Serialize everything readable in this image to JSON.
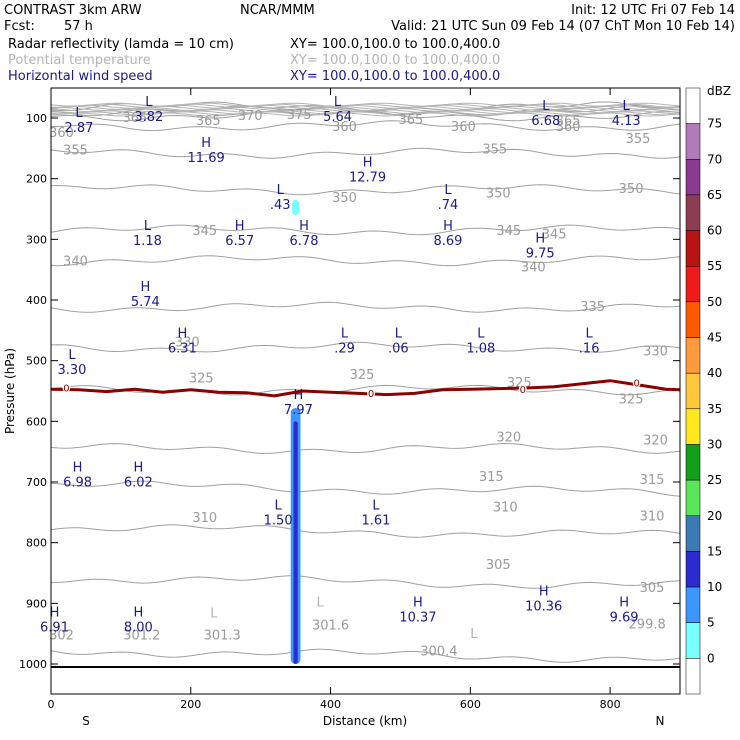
{
  "header": {
    "title": "CONTRAST  3km ARW",
    "center": "NCAR/MMM",
    "init": "Init: 12 UTC Fri 07 Feb 14",
    "fcst_label": "Fcst:",
    "fcst_value": "57 h",
    "valid": "Valid: 21 UTC Sun 09 Feb 14 (07 ChT Mon 10 Feb 14)",
    "fields": [
      {
        "name": "Radar reflectivity (lamda = 10 cm)",
        "xy": "XY= 100.0,100.0 to 100.0,400.0",
        "color": "#000000"
      },
      {
        "name": "Potential temperature",
        "xy": "XY= 100.0,100.0 to 100.0,400.0",
        "color": "#b4b4b4"
      },
      {
        "name": "Horizontal wind speed",
        "xy": "XY= 100.0,100.0 to 100.0,400.0",
        "color": "#1a1a8c"
      }
    ]
  },
  "chart_data": {
    "type": "cross-section",
    "xlabel": "Distance (km)",
    "ylabel": "Pressure (hPa)",
    "xlim": [
      0,
      900
    ],
    "ylim": [
      1050,
      60
    ],
    "x_ticks": [
      0,
      200,
      400,
      600,
      800
    ],
    "y_ticks": [
      100,
      200,
      300,
      400,
      500,
      600,
      700,
      800,
      900,
      1000
    ],
    "end_labels": {
      "left": "S",
      "right": "N"
    },
    "colorbar": {
      "unit": "dBZ",
      "levels": [
        "75",
        "70",
        "65",
        "60",
        "55",
        "50",
        "45",
        "40",
        "35",
        "30",
        "25",
        "20",
        "15",
        "10",
        "5",
        "0"
      ],
      "colors": [
        "#ffffff",
        "#b37ab9",
        "#8a3a91",
        "#8c3c53",
        "#b81414",
        "#ef1a1a",
        "#ff5a00",
        "#ff9b3c",
        "#ffc83c",
        "#ffe81e",
        "#12a01a",
        "#5ae65a",
        "#3c7ab4",
        "#2b2bd0",
        "#3c96ff",
        "#78ffff",
        "#ffffff"
      ]
    },
    "theta_lines": {
      "color": "#a0a0a0",
      "levels": [
        {
          "value": "300.4",
          "pressure": 978
        },
        {
          "value": "305",
          "pressure": 858
        },
        {
          "value": "310",
          "pressure": 775
        },
        {
          "value": "315",
          "pressure": 705
        },
        {
          "value": "320",
          "pressure": 645
        },
        {
          "value": "325",
          "pressure": 548
        },
        {
          "value": "330",
          "pressure": 478
        },
        {
          "value": "335",
          "pressure": 412
        },
        {
          "value": "340",
          "pressure": 335
        },
        {
          "value": "345",
          "pressure": 285
        },
        {
          "value": "350",
          "pressure": 218
        },
        {
          "value": "355",
          "pressure": 158
        },
        {
          "value": "360",
          "pressure": 113
        },
        {
          "value": "365",
          "pressure": 96
        },
        {
          "value": "370",
          "pressure": 88
        },
        {
          "value": "375",
          "pressure": 82
        }
      ],
      "labels": [
        {
          "text": "365",
          "x": 120,
          "p": 98
        },
        {
          "text": "365",
          "x": 225,
          "p": 103
        },
        {
          "text": "370",
          "x": 285,
          "p": 95
        },
        {
          "text": "375",
          "x": 355,
          "p": 93
        },
        {
          "text": "365",
          "x": 515,
          "p": 102
        },
        {
          "text": "365",
          "x": 740,
          "p": 103
        },
        {
          "text": "360",
          "x": 420,
          "p": 113
        },
        {
          "text": "360",
          "x": 590,
          "p": 113
        },
        {
          "text": "360",
          "x": 740,
          "p": 113
        },
        {
          "text": "360",
          "x": 15,
          "p": 123
        },
        {
          "text": "355",
          "x": 35,
          "p": 152
        },
        {
          "text": "355",
          "x": 635,
          "p": 150
        },
        {
          "text": "355",
          "x": 840,
          "p": 133
        },
        {
          "text": "350",
          "x": 420,
          "p": 230
        },
        {
          "text": "350",
          "x": 640,
          "p": 223
        },
        {
          "text": "350",
          "x": 830,
          "p": 215
        },
        {
          "text": "345",
          "x": 220,
          "p": 285
        },
        {
          "text": "345",
          "x": 655,
          "p": 285
        },
        {
          "text": "345",
          "x": 720,
          "p": 290
        },
        {
          "text": "340",
          "x": 35,
          "p": 335
        },
        {
          "text": "340",
          "x": 690,
          "p": 345
        },
        {
          "text": "335",
          "x": 775,
          "p": 410
        },
        {
          "text": "330",
          "x": 195,
          "p": 468
        },
        {
          "text": "330",
          "x": 865,
          "p": 483
        },
        {
          "text": "325",
          "x": 215,
          "p": 528
        },
        {
          "text": "325",
          "x": 445,
          "p": 522
        },
        {
          "text": "325",
          "x": 670,
          "p": 535
        },
        {
          "text": "325",
          "x": 830,
          "p": 562
        },
        {
          "text": "320",
          "x": 655,
          "p": 625
        },
        {
          "text": "320",
          "x": 865,
          "p": 630
        },
        {
          "text": "315",
          "x": 630,
          "p": 690
        },
        {
          "text": "315",
          "x": 860,
          "p": 695
        },
        {
          "text": "310",
          "x": 220,
          "p": 758
        },
        {
          "text": "310",
          "x": 650,
          "p": 740
        },
        {
          "text": "310",
          "x": 860,
          "p": 755
        },
        {
          "text": "305",
          "x": 640,
          "p": 835
        },
        {
          "text": "305",
          "x": 860,
          "p": 873
        },
        {
          "text": "302",
          "x": 15,
          "p": 951
        },
        {
          "text": "301.2",
          "x": 130,
          "p": 951
        },
        {
          "text": "301.3",
          "x": 245,
          "p": 951
        },
        {
          "text": "301.6",
          "x": 400,
          "p": 935
        },
        {
          "text": "300.4",
          "x": 555,
          "p": 978
        },
        {
          "text": "299.8",
          "x": 853,
          "p": 933
        }
      ],
      "hl_marks": [
        {
          "mark": "L",
          "x": 233,
          "p": 923
        },
        {
          "mark": "L",
          "x": 385,
          "p": 905
        },
        {
          "mark": "L",
          "x": 605,
          "p": 957
        }
      ]
    },
    "freezing_line": {
      "color": "#8b0000",
      "value": "0",
      "points": [
        [
          0,
          547
        ],
        [
          40,
          548
        ],
        [
          80,
          551
        ],
        [
          120,
          547
        ],
        [
          160,
          552
        ],
        [
          200,
          548
        ],
        [
          240,
          552
        ],
        [
          280,
          553
        ],
        [
          320,
          558
        ],
        [
          360,
          550
        ],
        [
          400,
          552
        ],
        [
          440,
          554
        ],
        [
          480,
          556
        ],
        [
          520,
          554
        ],
        [
          560,
          548
        ],
        [
          600,
          547
        ],
        [
          640,
          546
        ],
        [
          680,
          545
        ],
        [
          720,
          543
        ],
        [
          760,
          538
        ],
        [
          800,
          533
        ],
        [
          840,
          540
        ],
        [
          880,
          547
        ],
        [
          900,
          548
        ]
      ],
      "zero_labels": [
        {
          "x": 22,
          "p": 544
        },
        {
          "x": 458,
          "p": 553
        },
        {
          "x": 675,
          "p": 547
        },
        {
          "x": 838,
          "p": 536
        }
      ]
    },
    "reflectivity": [
      {
        "x": 350,
        "width_km": 14,
        "p_top": 578,
        "p_bottom": 1000,
        "color": "#3c96ff"
      },
      {
        "x": 350,
        "width_km": 6,
        "p_top": 600,
        "p_bottom": 1000,
        "color": "#2b2bd0"
      },
      {
        "x": 350,
        "width_km": 10,
        "p_top": 235,
        "p_bottom": 260,
        "color": "#78ffff"
      }
    ],
    "wind_extrema": {
      "color": "#1a1a8c",
      "points": [
        {
          "mark": "L",
          "value": "2.87",
          "x": 40,
          "p": 98
        },
        {
          "mark": "L",
          "value": "3.82",
          "x": 140,
          "p": 80
        },
        {
          "mark": "L",
          "value": "5.64",
          "x": 410,
          "p": 80
        },
        {
          "mark": "L",
          "value": "6.68",
          "x": 708,
          "p": 87
        },
        {
          "mark": "L",
          "value": "4.13",
          "x": 823,
          "p": 87
        },
        {
          "mark": "H",
          "value": "11.69",
          "x": 222,
          "p": 148
        },
        {
          "mark": "H",
          "value": "12.79",
          "x": 453,
          "p": 180
        },
        {
          "mark": "L",
          "value": ".43",
          "x": 328,
          "p": 225
        },
        {
          "mark": "L",
          "value": ".74",
          "x": 568,
          "p": 225
        },
        {
          "mark": "L",
          "value": "1.18",
          "x": 138,
          "p": 285
        },
        {
          "mark": "H",
          "value": "6.57",
          "x": 270,
          "p": 285
        },
        {
          "mark": "H",
          "value": "6.78",
          "x": 362,
          "p": 285
        },
        {
          "mark": "H",
          "value": "8.69",
          "x": 568,
          "p": 285
        },
        {
          "mark": "H",
          "value": "9.75",
          "x": 700,
          "p": 305
        },
        {
          "mark": "H",
          "value": "5.74",
          "x": 135,
          "p": 385
        },
        {
          "mark": "H",
          "value": "6.31",
          "x": 188,
          "p": 462
        },
        {
          "mark": "L",
          "value": ".29",
          "x": 420,
          "p": 462
        },
        {
          "mark": "L",
          "value": ".06",
          "x": 497,
          "p": 462
        },
        {
          "mark": "L",
          "value": "1.08",
          "x": 615,
          "p": 462
        },
        {
          "mark": "L",
          "value": ".16",
          "x": 770,
          "p": 462
        },
        {
          "mark": "L",
          "value": "3.30",
          "x": 30,
          "p": 497
        },
        {
          "mark": "H",
          "value": "7.97",
          "x": 354,
          "p": 563
        },
        {
          "mark": "H",
          "value": "6.98",
          "x": 38,
          "p": 683
        },
        {
          "mark": "H",
          "value": "6.02",
          "x": 125,
          "p": 683
        },
        {
          "mark": "L",
          "value": "1.50",
          "x": 325,
          "p": 745
        },
        {
          "mark": "L",
          "value": "1.61",
          "x": 465,
          "p": 745
        },
        {
          "mark": "H",
          "value": "10.37",
          "x": 525,
          "p": 905
        },
        {
          "mark": "H",
          "value": "10.36",
          "x": 705,
          "p": 887
        },
        {
          "mark": "H",
          "value": "9.69",
          "x": 820,
          "p": 905
        },
        {
          "mark": "H",
          "value": "8.00",
          "x": 125,
          "p": 922
        },
        {
          "mark": "H",
          "value": "6.91",
          "x": 5,
          "p": 922
        }
      ]
    },
    "surface_p": 1005
  }
}
